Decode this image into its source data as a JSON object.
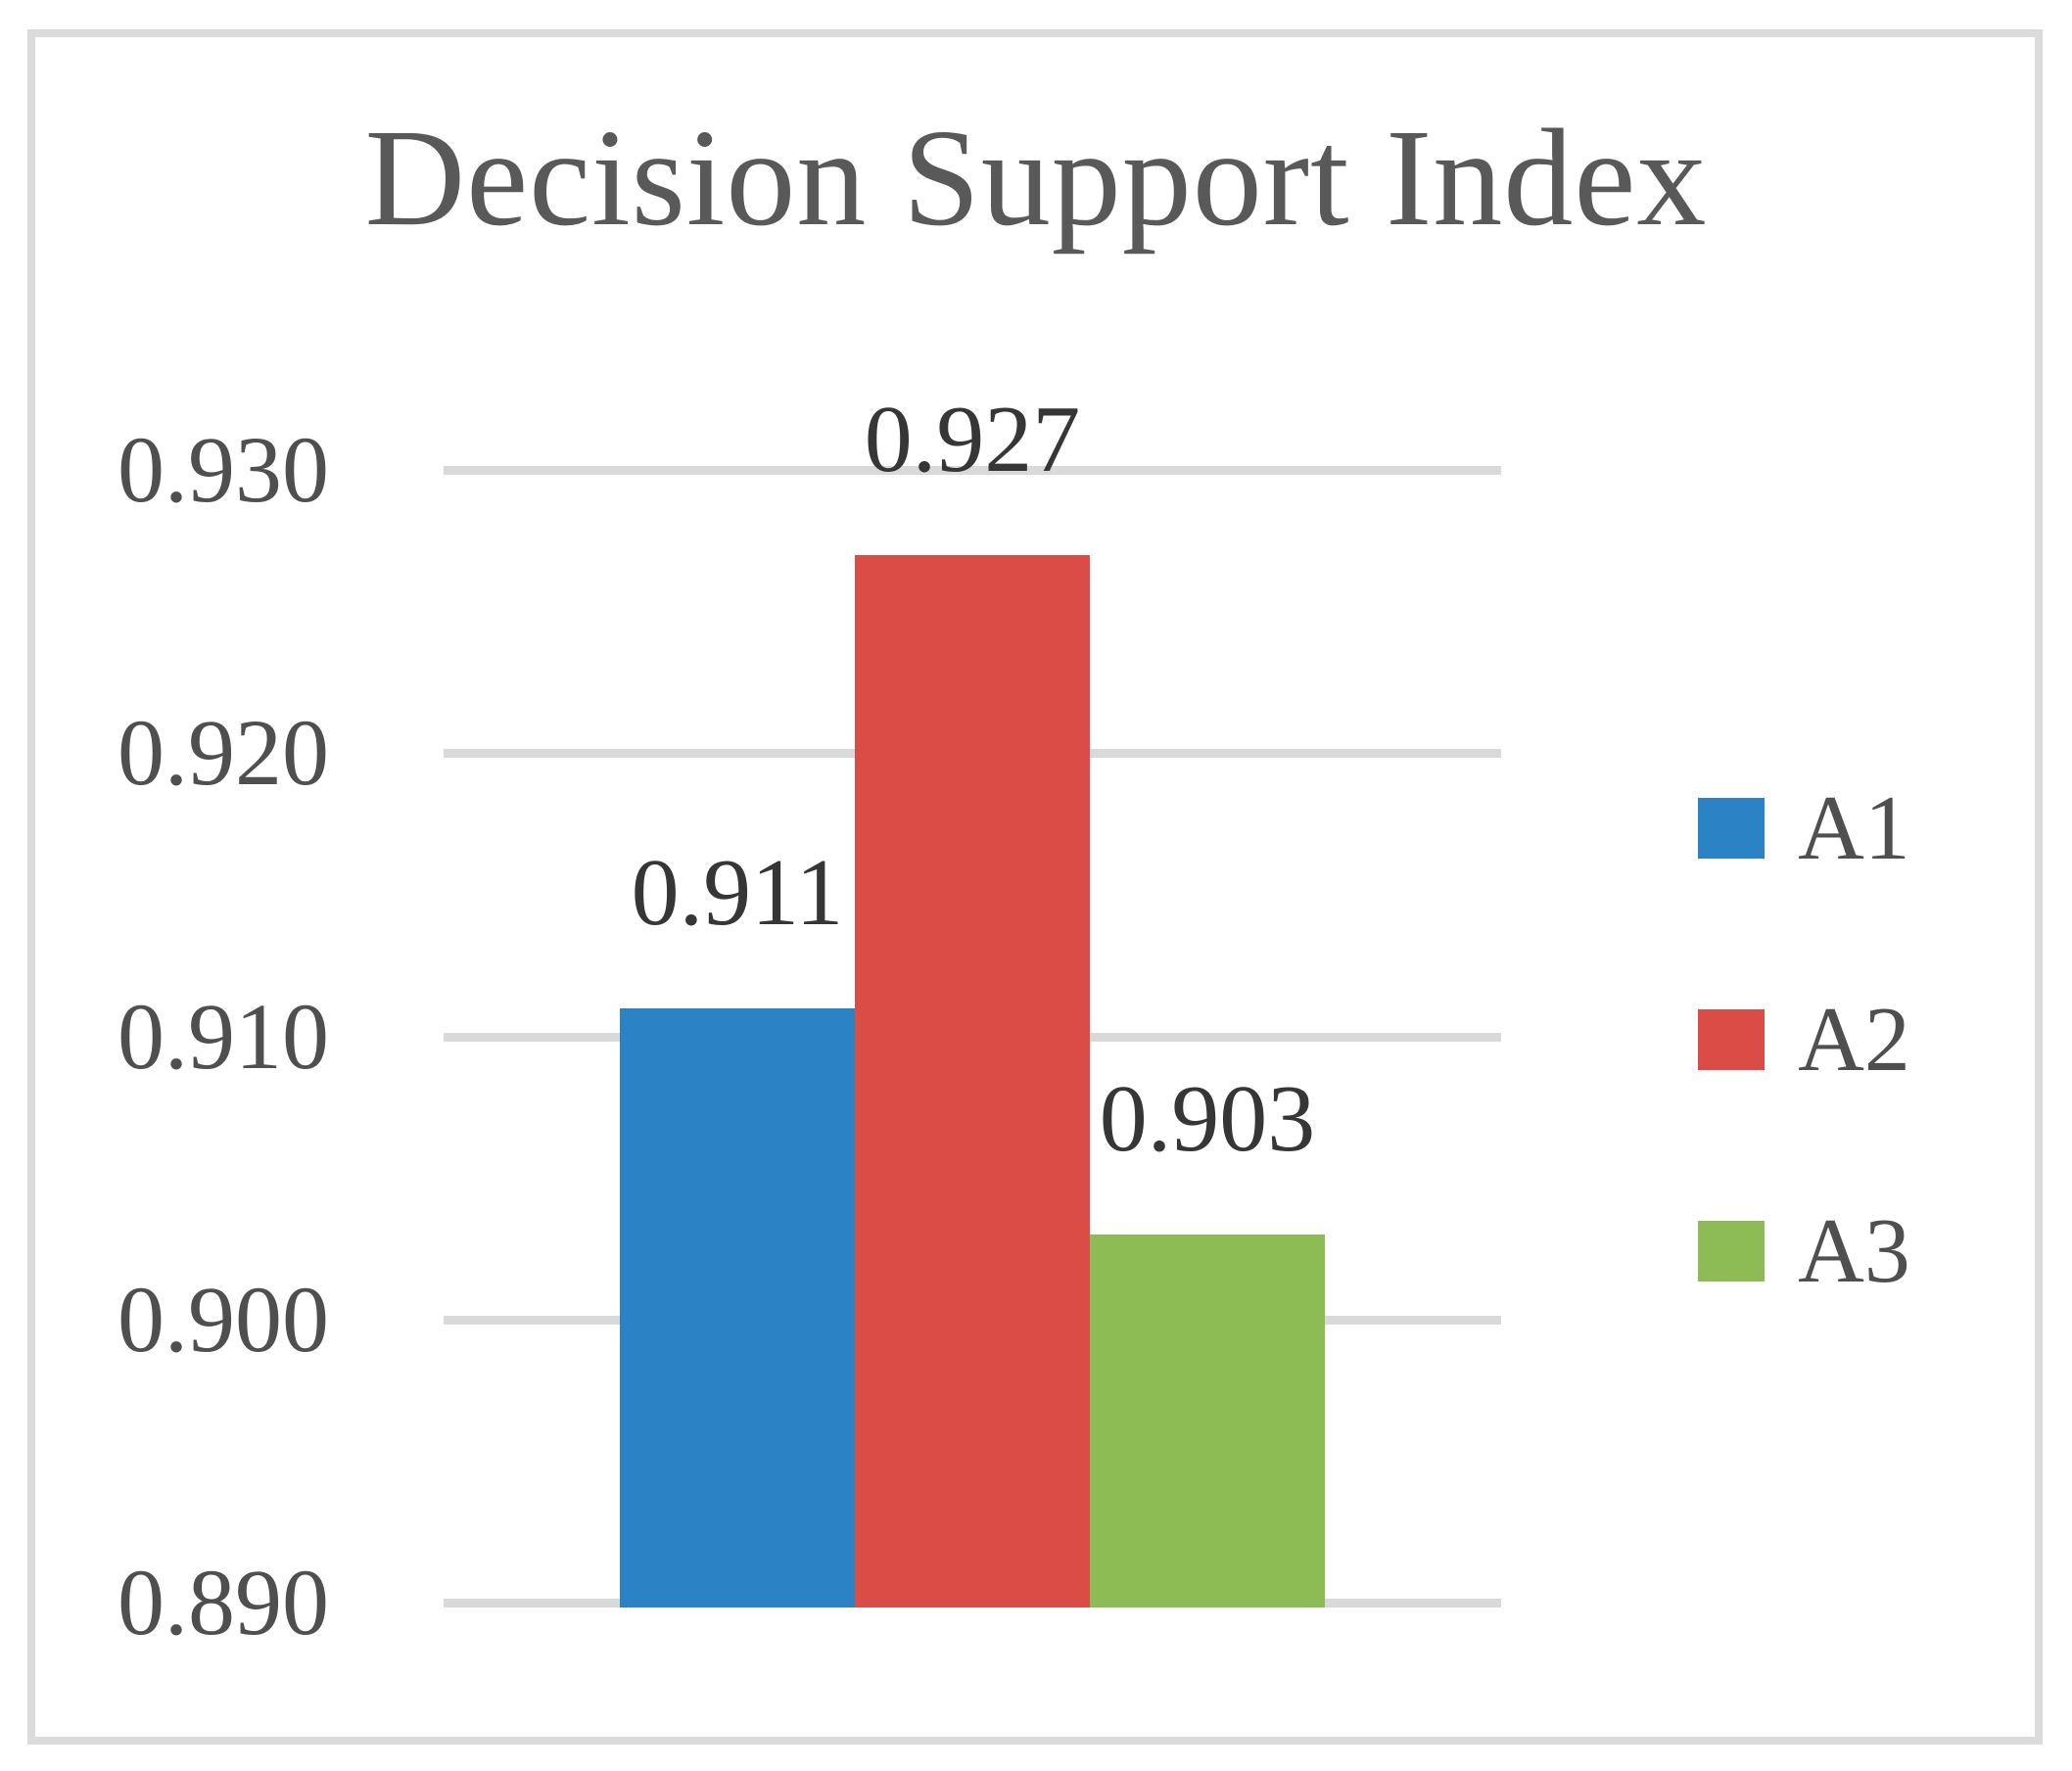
{
  "figure": {
    "title": "Decision Support Index"
  },
  "palette": {
    "frame_border": "#dbdbdb",
    "gridline": "#d9d9d9",
    "title_text": "#595959",
    "tick_text": "#4f4f4f",
    "value_label_text": "#363636",
    "legend_text": "#4f4f4f",
    "background": "#ffffff"
  },
  "chart_data": {
    "type": "bar",
    "title": "Decision Support Index",
    "categories": [
      "A1",
      "A2",
      "A3"
    ],
    "values": [
      0.911,
      0.927,
      0.903
    ],
    "value_labels": [
      "0.911",
      "0.927",
      "0.903"
    ],
    "series_colors": [
      "#2b82c5",
      "#db4c46",
      "#8ebc54"
    ],
    "xlabel": "",
    "ylabel": "",
    "ylim": [
      0.89,
      0.93
    ],
    "ytick_interval": 0.01,
    "yticks": [
      0.93,
      0.92,
      0.91,
      0.9,
      0.89
    ],
    "ytick_labels": [
      "0.930",
      "0.920",
      "0.910",
      "0.900",
      "0.890"
    ],
    "grid": true,
    "legend_position": "right",
    "legend": [
      {
        "label": "A1",
        "color": "#2b82c5"
      },
      {
        "label": "A2",
        "color": "#db4c46"
      },
      {
        "label": "A3",
        "color": "#8ebc54"
      }
    ]
  }
}
